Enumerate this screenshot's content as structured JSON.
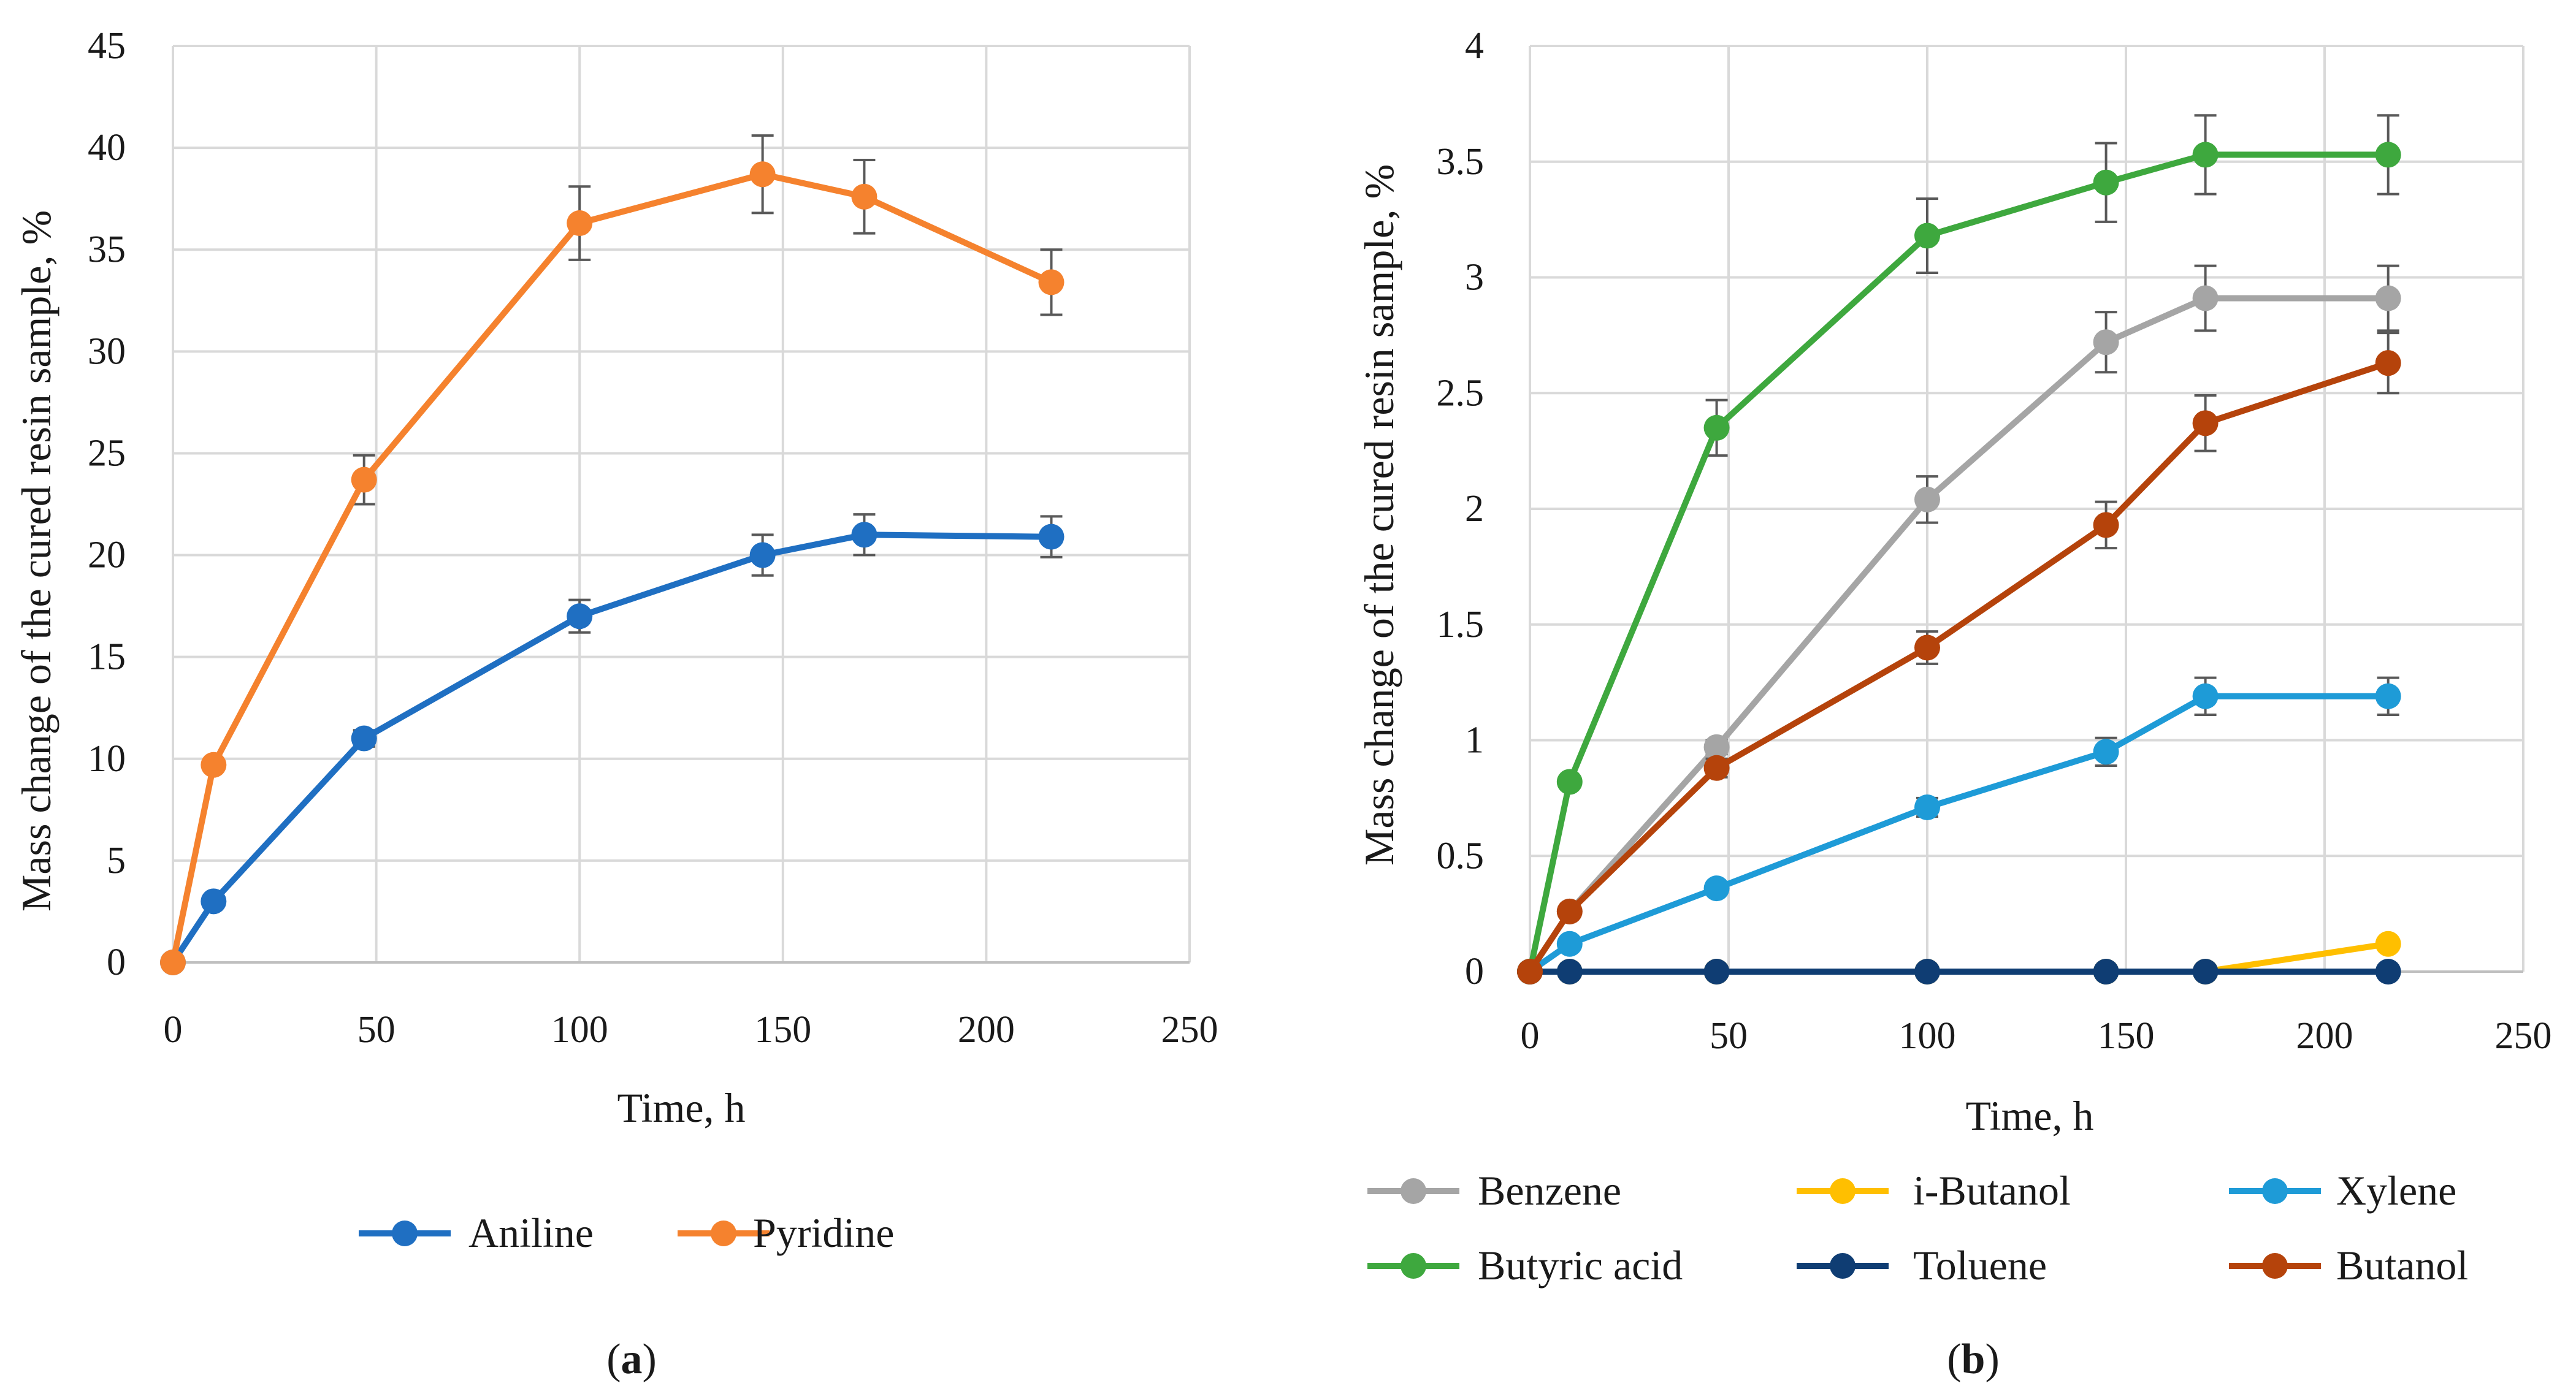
{
  "chart_data": [
    {
      "type": "line",
      "panel_label": "a",
      "xlabel": "Time, h",
      "ylabel": "Mass change of the cured resin sample, %",
      "xlim": [
        0,
        250
      ],
      "ylim": [
        0,
        45
      ],
      "xticks": [
        "0",
        "50",
        "100",
        "150",
        "200",
        "250"
      ],
      "yticks": [
        "0",
        "5",
        "10",
        "15",
        "20",
        "25",
        "30",
        "35",
        "40",
        "45"
      ],
      "grid": true,
      "legend_position": "bottom",
      "series": [
        {
          "name": "Aniline",
          "color": "#1f6fc2",
          "x": [
            0,
            10,
            47,
            100,
            145,
            170,
            216
          ],
          "y": [
            0,
            3.0,
            11.0,
            17.0,
            20.0,
            21.0,
            20.9
          ],
          "err": [
            0,
            0,
            0.4,
            0.8,
            1.0,
            1.0,
            1.0
          ]
        },
        {
          "name": "Pyridine",
          "color": "#f5822e",
          "x": [
            0,
            10,
            47,
            100,
            145,
            170,
            216
          ],
          "y": [
            0,
            9.7,
            23.7,
            36.3,
            38.7,
            37.6,
            33.4
          ],
          "err": [
            0,
            0,
            1.2,
            1.8,
            1.9,
            1.8,
            1.6
          ]
        }
      ]
    },
    {
      "type": "line",
      "panel_label": "b",
      "xlabel": "Time, h",
      "ylabel": "Mass change of the cured resin sample, %",
      "xlim": [
        0,
        250
      ],
      "ylim": [
        0,
        4
      ],
      "xticks": [
        "0",
        "50",
        "100",
        "150",
        "200",
        "250"
      ],
      "yticks": [
        "0",
        "0.5",
        "1",
        "1.5",
        "2",
        "2.5",
        "3",
        "3.5",
        "4"
      ],
      "grid": true,
      "legend_position": "bottom",
      "series": [
        {
          "name": "Benzene",
          "color": "#a5a5a5",
          "x": [
            0,
            10,
            47,
            100,
            145,
            170,
            216
          ],
          "y": [
            0,
            0.26,
            0.97,
            2.04,
            2.72,
            2.91,
            2.91
          ],
          "err": [
            0,
            0,
            0.03,
            0.1,
            0.13,
            0.14,
            0.14
          ]
        },
        {
          "name": "i-Butanol",
          "color": "#ffbf00",
          "x": [
            0,
            10,
            47,
            100,
            145,
            170,
            216
          ],
          "y": [
            0,
            0,
            0,
            0,
            0,
            0,
            0.12
          ],
          "err": [
            0,
            0,
            0,
            0,
            0,
            0,
            0
          ]
        },
        {
          "name": "Xylene",
          "color": "#1e9bd7",
          "x": [
            0,
            10,
            47,
            100,
            145,
            170,
            216
          ],
          "y": [
            0,
            0.12,
            0.36,
            0.71,
            0.95,
            1.19,
            1.19
          ],
          "err": [
            0,
            0,
            0,
            0.04,
            0.06,
            0.08,
            0.08
          ]
        },
        {
          "name": "Butyric acid",
          "color": "#3ea83e",
          "x": [
            0,
            10,
            47,
            100,
            145,
            170,
            216
          ],
          "y": [
            0,
            0.82,
            2.35,
            3.18,
            3.41,
            3.53,
            3.53
          ],
          "err": [
            0,
            0,
            0.12,
            0.16,
            0.17,
            0.17,
            0.17
          ]
        },
        {
          "name": "Toluene",
          "color": "#0f3d73",
          "x": [
            0,
            10,
            47,
            100,
            145,
            170,
            216
          ],
          "y": [
            0,
            0,
            0,
            0,
            0,
            0,
            0
          ],
          "err": [
            0,
            0,
            0,
            0,
            0,
            0,
            0
          ]
        },
        {
          "name": "Butanol",
          "color": "#b5430b",
          "x": [
            0,
            10,
            47,
            100,
            145,
            170,
            216
          ],
          "y": [
            0,
            0.26,
            0.88,
            1.4,
            1.93,
            2.37,
            2.63
          ],
          "err": [
            0,
            0,
            0.04,
            0.07,
            0.1,
            0.12,
            0.13
          ]
        }
      ]
    }
  ]
}
